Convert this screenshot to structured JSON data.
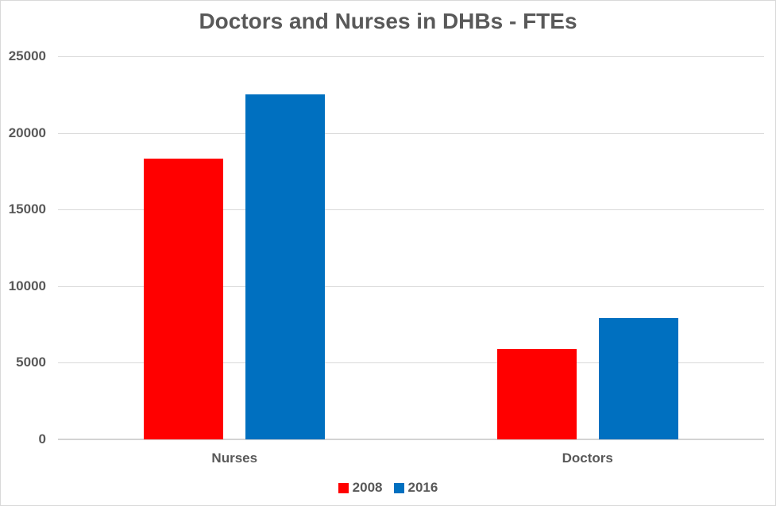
{
  "chart_data": {
    "type": "bar",
    "title": "Doctors and Nurses in DHBs - FTEs",
    "categories": [
      "Nurses",
      "Doctors"
    ],
    "series": [
      {
        "name": "2008",
        "color": "#FF0000",
        "values": [
          18300,
          5900
        ]
      },
      {
        "name": "2016",
        "color": "#0070C0",
        "values": [
          22500,
          7900
        ]
      }
    ],
    "ylim": [
      0,
      25000
    ],
    "yticks": [
      0,
      5000,
      10000,
      15000,
      20000,
      25000
    ],
    "ytick_labels": [
      "0",
      "5000",
      "10000",
      "15000",
      "20000",
      "25000"
    ],
    "xlabel": "",
    "ylabel": "",
    "grid": true,
    "legend_position": "bottom"
  },
  "style": {
    "text_color": "#595959",
    "gridline_color": "#D9D9D9",
    "baseline_color": "#D3D3D3",
    "background": "#FFFFFF",
    "border_color": "#D9D9D9"
  }
}
